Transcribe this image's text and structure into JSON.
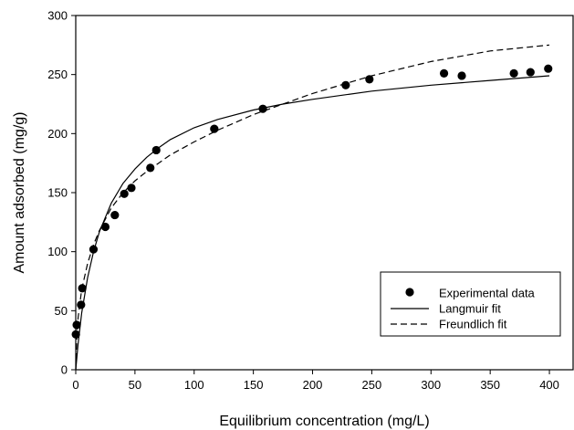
{
  "chart_data": {
    "type": "scatter",
    "xlabel": "Equilibrium concentration (mg/L)",
    "ylabel": "Amount adsorbed (mg/g)",
    "xlim": [
      0,
      420
    ],
    "ylim": [
      0,
      300
    ],
    "xticks": [
      0,
      50,
      100,
      150,
      200,
      250,
      300,
      350,
      400
    ],
    "yticks": [
      0,
      50,
      100,
      150,
      200,
      250,
      300
    ],
    "grid": false,
    "legend_position": "bottom-right",
    "series": [
      {
        "name": "Experimental data",
        "kind": "points",
        "points": [
          [
            0.1,
            30
          ],
          [
            0.8,
            38
          ],
          [
            4.5,
            55
          ],
          [
            5.5,
            69
          ],
          [
            15,
            102
          ],
          [
            25,
            121
          ],
          [
            33,
            131
          ],
          [
            41,
            149
          ],
          [
            47,
            154
          ],
          [
            63,
            171
          ],
          [
            68,
            186
          ],
          [
            117,
            204
          ],
          [
            158,
            221
          ],
          [
            228,
            241
          ],
          [
            248,
            246
          ],
          [
            311,
            251
          ],
          [
            326,
            249
          ],
          [
            370,
            251
          ],
          [
            384,
            252
          ],
          [
            399,
            255
          ]
        ]
      },
      {
        "name": "Langmuir fit",
        "kind": "line",
        "style": "solid",
        "points": [
          [
            0,
            0
          ],
          [
            2,
            22
          ],
          [
            5,
            48
          ],
          [
            10,
            78
          ],
          [
            15,
            100
          ],
          [
            20,
            117
          ],
          [
            30,
            141
          ],
          [
            40,
            158
          ],
          [
            50,
            170
          ],
          [
            60,
            180
          ],
          [
            70,
            188
          ],
          [
            80,
            195
          ],
          [
            100,
            205
          ],
          [
            120,
            212
          ],
          [
            150,
            220
          ],
          [
            175,
            225
          ],
          [
            200,
            229
          ],
          [
            250,
            236
          ],
          [
            300,
            241
          ],
          [
            350,
            245
          ],
          [
            400,
            249
          ]
        ]
      },
      {
        "name": "Freundlich fit",
        "kind": "line",
        "style": "dashed",
        "points": [
          [
            0,
            0
          ],
          [
            1,
            31
          ],
          [
            2,
            44
          ],
          [
            5,
            68
          ],
          [
            10,
            90
          ],
          [
            15,
            106
          ],
          [
            20,
            118
          ],
          [
            30,
            137
          ],
          [
            40,
            150
          ],
          [
            50,
            160
          ],
          [
            60,
            168
          ],
          [
            70,
            175
          ],
          [
            80,
            182
          ],
          [
            100,
            193
          ],
          [
            120,
            203
          ],
          [
            150,
            216
          ],
          [
            200,
            234
          ],
          [
            250,
            249
          ],
          [
            300,
            261
          ],
          [
            350,
            270
          ],
          [
            400,
            275
          ]
        ]
      }
    ]
  }
}
